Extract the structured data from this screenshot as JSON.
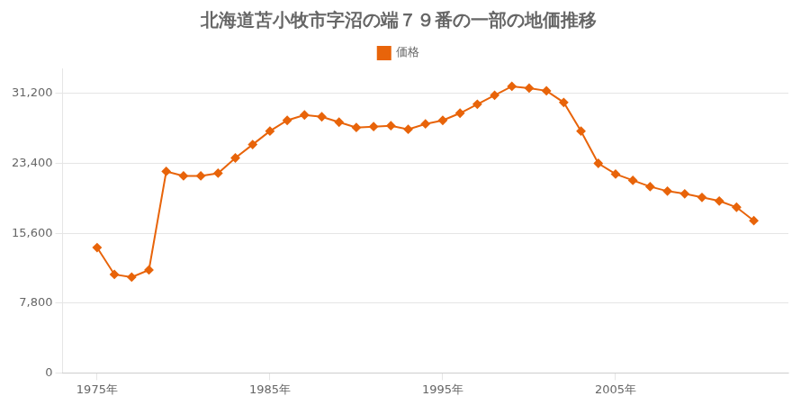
{
  "chart_data": {
    "type": "line",
    "title": "北海道苫小牧市字沼の端７９番の一部の地価推移",
    "x": [
      1975,
      1976,
      1977,
      1978,
      1979,
      1980,
      1981,
      1982,
      1983,
      1984,
      1985,
      1986,
      1987,
      1988,
      1989,
      1990,
      1991,
      1992,
      1993,
      1994,
      1995,
      1996,
      1997,
      1998,
      1999,
      2000,
      2001,
      2002,
      2003,
      2004,
      2005,
      2006,
      2007,
      2008,
      2009,
      2010,
      2011,
      2012,
      2013
    ],
    "series": [
      {
        "name": "価格",
        "color": "#e8640a",
        "marker": "diamond",
        "values": [
          14000,
          11000,
          10700,
          11500,
          22500,
          22000,
          22000,
          22300,
          24000,
          25500,
          27000,
          28200,
          28800,
          28600,
          28000,
          27400,
          27500,
          27600,
          27200,
          27800,
          28200,
          29000,
          30000,
          31000,
          32000,
          31800,
          31500,
          30200,
          27000,
          23400,
          22200,
          21500,
          20800,
          20300,
          20000,
          19600,
          19200,
          18500,
          17000
        ]
      }
    ],
    "xlim": [
      1973,
      2015
    ],
    "xticks": [
      {
        "value": 1975,
        "label": "1975年"
      },
      {
        "value": 1985,
        "label": "1985年"
      },
      {
        "value": 1995,
        "label": "1995年"
      },
      {
        "value": 2005,
        "label": "2005年"
      }
    ],
    "ylim": [
      0,
      34000
    ],
    "yticks": [
      0,
      {
        "value": 7800,
        "label": "7,800"
      },
      {
        "value": 15600,
        "label": "15,600"
      },
      {
        "value": 23400,
        "label": "23,400"
      },
      {
        "value": 31200,
        "label": "31,200"
      }
    ],
    "grid": "y",
    "legend": "top"
  }
}
